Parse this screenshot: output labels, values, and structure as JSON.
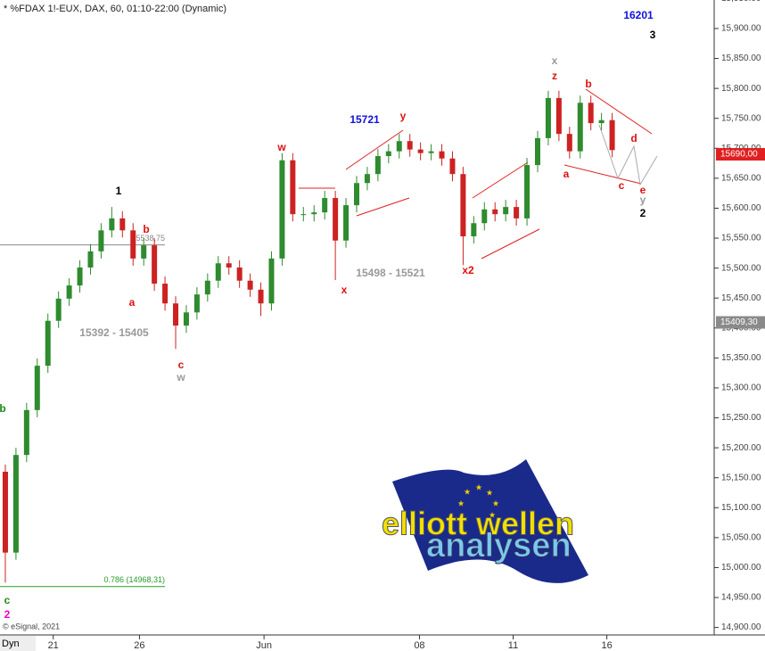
{
  "chart_data": {
    "type": "candlestick",
    "title": "* %FDAX 1!-EUX, DAX, 60, 01:10-22:00 (Dynamic)",
    "credit": "© eSignal, 2021",
    "interval_label": "Dyn",
    "up_color": "#2e8b2e",
    "down_color": "#cc2222",
    "open": [
      15160,
      15025,
      15188,
      15263,
      15337,
      15412,
      15449,
      15471,
      15501,
      15528,
      15563,
      15583,
      15563,
      15516,
      15538,
      15474,
      15441,
      15404,
      15426,
      15456,
      15479,
      15508,
      15501,
      15479,
      15464,
      15441,
      15516,
      15680,
      15590,
      15590,
      15593,
      15617,
      15546,
      15605,
      15642,
      15657,
      15687,
      15695,
      15712,
      15698,
      15692,
      15695,
      15683,
      15657,
      15553,
      15575,
      15598,
      15590,
      15602,
      15583,
      15672,
      15717,
      15784,
      15724,
      15695,
      15776,
      15742,
      15747
    ],
    "high": [
      15172,
      15200,
      15275,
      15349,
      15424,
      15461,
      15483,
      15513,
      15540,
      15575,
      15602,
      15595,
      15575,
      15550,
      15550,
      15486,
      15453,
      15438,
      15468,
      15491,
      15520,
      15520,
      15513,
      15491,
      15476,
      15528,
      15692,
      15692,
      15602,
      15605,
      15629,
      15629,
      15617,
      15654,
      15669,
      15699,
      15707,
      15724,
      15724,
      15710,
      15707,
      15707,
      15695,
      15669,
      15587,
      15610,
      15610,
      15614,
      15614,
      15684,
      15729,
      15796,
      15796,
      15736,
      15788,
      15788,
      15759,
      15759
    ],
    "low": [
      14975,
      15013,
      15176,
      15251,
      15325,
      15400,
      15437,
      15459,
      15489,
      15516,
      15551,
      15551,
      15504,
      15504,
      15462,
      15429,
      15365,
      15392,
      15414,
      15444,
      15467,
      15489,
      15467,
      15452,
      15420,
      15429,
      15504,
      15578,
      15578,
      15578,
      15581,
      15480,
      15534,
      15593,
      15630,
      15645,
      15675,
      15683,
      15686,
      15680,
      15680,
      15671,
      15645,
      15505,
      15541,
      15563,
      15578,
      15578,
      15571,
      15571,
      15660,
      15705,
      15712,
      15683,
      15683,
      15730,
      15730,
      15685
    ],
    "close": [
      15025,
      15188,
      15263,
      15337,
      15412,
      15449,
      15471,
      15501,
      15528,
      15563,
      15583,
      15563,
      15516,
      15538,
      15474,
      15441,
      15404,
      15426,
      15456,
      15479,
      15508,
      15501,
      15479,
      15464,
      15441,
      15516,
      15680,
      15590,
      15590,
      15593,
      15617,
      15546,
      15605,
      15642,
      15657,
      15687,
      15695,
      15712,
      15698,
      15692,
      15695,
      15683,
      15657,
      15553,
      15575,
      15598,
      15590,
      15602,
      15583,
      15672,
      15717,
      15784,
      15724,
      15695,
      15776,
      15742,
      15747,
      15697
    ],
    "xlim": [
      -0.5,
      66.5
    ],
    "xticks": [
      {
        "value": 4.5,
        "label": "21"
      },
      {
        "value": 12.6,
        "label": "26"
      },
      {
        "value": 24.3,
        "label": "Jun"
      },
      {
        "value": 38.9,
        "label": "08"
      },
      {
        "value": 47.7,
        "label": "11"
      },
      {
        "value": 56.5,
        "label": "16"
      }
    ],
    "ylim": [
      14887.5,
      15947.6
    ],
    "yticks": [
      {
        "value": 14900,
        "label": "14,900.00"
      },
      {
        "value": 14950,
        "label": "14,950.00"
      },
      {
        "value": 15000,
        "label": "15,000.00"
      },
      {
        "value": 15050,
        "label": "15,050.00"
      },
      {
        "value": 15100,
        "label": "15,100.00"
      },
      {
        "value": 15150,
        "label": "15,150.00"
      },
      {
        "value": 15200,
        "label": "15,200.00"
      },
      {
        "value": 15250,
        "label": "15,250.00"
      },
      {
        "value": 15300,
        "label": "15,300.00"
      },
      {
        "value": 15350,
        "label": "15,350.00"
      },
      {
        "value": 15400,
        "label": "15,400.00"
      },
      {
        "value": 15450,
        "label": "15,450.00"
      },
      {
        "value": 15500,
        "label": "15,500.00"
      },
      {
        "value": 15550,
        "label": "15,550.00"
      },
      {
        "value": 15600,
        "label": "15,600.00"
      },
      {
        "value": 15650,
        "label": "15,650.00"
      },
      {
        "value": 15700,
        "label": "15,700.00"
      },
      {
        "value": 15750,
        "label": "15,750.00"
      },
      {
        "value": 15800,
        "label": "15,800.00"
      },
      {
        "value": 15850,
        "label": "15,850.00"
      },
      {
        "value": 15900,
        "label": "15,900.00"
      },
      {
        "value": 15950,
        "label": "15,950.00"
      }
    ],
    "levels": [
      {
        "value": 15538.75,
        "label": "15538,75",
        "color": "#888888"
      },
      {
        "value": 14968.31,
        "label": "0.786 (14968,31)",
        "color": "#2a9a2a"
      }
    ],
    "price_markers": [
      {
        "value": 15690,
        "label": "15690,00",
        "color": "#e02020"
      },
      {
        "value": 15409.3,
        "label": "15409,30",
        "color": "#8a8a8a"
      }
    ],
    "annotations": [
      {
        "text": "1",
        "color": "#000000"
      },
      {
        "text": "b",
        "color": "#dd1111"
      },
      {
        "text": "a",
        "color": "#dd1111"
      },
      {
        "text": "15392 - 15405",
        "color": "#999999"
      },
      {
        "text": "c",
        "color": "#dd1111"
      },
      {
        "text": "w",
        "color": "#999999"
      },
      {
        "text": "w",
        "color": "#dd1111"
      },
      {
        "text": "15721",
        "color": "#1010dd"
      },
      {
        "text": "y",
        "color": "#dd1111"
      },
      {
        "text": "x",
        "color": "#dd1111"
      },
      {
        "text": "15498 - 15521",
        "color": "#999999"
      },
      {
        "text": "x2",
        "color": "#dd1111"
      },
      {
        "text": "x",
        "color": "#999999"
      },
      {
        "text": "z",
        "color": "#dd1111"
      },
      {
        "text": "b",
        "color": "#dd1111"
      },
      {
        "text": "d",
        "color": "#dd1111"
      },
      {
        "text": "a",
        "color": "#dd1111"
      },
      {
        "text": "c",
        "color": "#dd1111"
      },
      {
        "text": "e",
        "color": "#dd1111"
      },
      {
        "text": "y",
        "color": "#999999"
      },
      {
        "text": "2",
        "color": "#000000"
      },
      {
        "text": "16201",
        "color": "#1010dd"
      },
      {
        "text": "3",
        "color": "#000000"
      },
      {
        "text": "b",
        "color": "#1a8a1a"
      },
      {
        "text": "c",
        "color": "#1a8a1a"
      },
      {
        "text": "2",
        "color": "#ee00cc"
      }
    ],
    "logo": {
      "line1": "elliott wellen",
      "line2": "analysen"
    }
  }
}
